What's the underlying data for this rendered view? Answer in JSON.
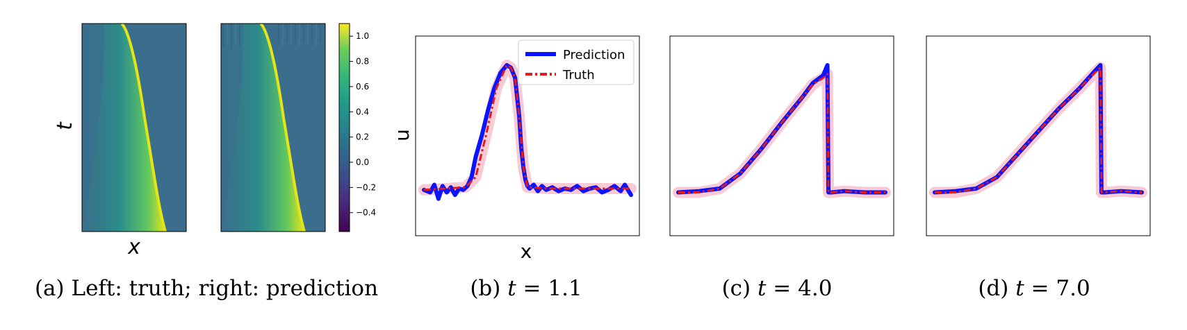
{
  "colors": {
    "truth": "#e41a1c",
    "prediction": "#0a14ff",
    "band": "#f5b8c4",
    "viridis_low": "#440154",
    "viridis_bg": "#3b6d8c",
    "viridis_high": "#fde725"
  },
  "captions": {
    "a": "(a) Left: truth; right: prediction",
    "b_prefix": "(b) ",
    "b_var": "t",
    "b_eq": " = 1.1",
    "c_prefix": "(c) ",
    "c_var": "t",
    "c_eq": " = 4.0",
    "d_prefix": "(d) ",
    "d_var": "t",
    "d_eq": " = 7.0"
  },
  "chart_data": [
    {
      "type": "heatmap",
      "panel": "truth",
      "xlabel": "x",
      "ylabel": "t",
      "colormap": "viridis",
      "colorbar": {
        "ticks": [
          1.0,
          0.8,
          0.6,
          0.4,
          0.2,
          0.0,
          -0.2,
          -0.4
        ],
        "tick_labels": [
          "1.0",
          "0.8",
          "0.6",
          "0.4",
          "0.2",
          "0.0",
          "−0.2",
          "−0.4"
        ],
        "range": [
          -0.55,
          1.1
        ]
      }
    },
    {
      "type": "heatmap",
      "panel": "prediction",
      "colormap": "viridis"
    },
    {
      "type": "line",
      "xlabel": "x",
      "ylabel": "u",
      "legend": [
        "Prediction",
        "Truth"
      ],
      "legend_position": "top-right",
      "series": [
        {
          "name": "Prediction",
          "x": [
            0.0,
            0.03,
            0.05,
            0.07,
            0.09,
            0.11,
            0.13,
            0.15,
            0.17,
            0.19,
            0.21,
            0.23,
            0.25,
            0.28,
            0.31,
            0.34,
            0.37,
            0.4,
            0.42,
            0.44,
            0.46,
            0.47,
            0.48,
            0.49,
            0.5,
            0.51,
            0.53,
            0.55,
            0.57,
            0.59,
            0.62,
            0.65,
            0.68,
            0.71,
            0.74,
            0.77,
            0.8,
            0.83,
            0.86,
            0.89,
            0.92,
            0.95,
            0.97,
            1.0
          ],
          "y": [
            0.02,
            0.0,
            0.06,
            -0.05,
            0.05,
            0.0,
            0.04,
            -0.02,
            0.03,
            0.02,
            0.05,
            0.12,
            0.28,
            0.45,
            0.65,
            0.82,
            0.94,
            1.0,
            0.98,
            0.9,
            0.6,
            0.35,
            0.2,
            0.1,
            0.05,
            0.03,
            0.06,
            0.01,
            0.05,
            0.02,
            0.04,
            0.01,
            0.03,
            0.02,
            0.05,
            0.01,
            0.03,
            0.04,
            0.0,
            0.02,
            0.05,
            0.01,
            0.06,
            -0.02
          ]
        },
        {
          "name": "Truth",
          "x": [
            0.0,
            0.1,
            0.2,
            0.25,
            0.3,
            0.35,
            0.4,
            0.42,
            0.44,
            0.46,
            0.48,
            0.5,
            0.6,
            0.7,
            0.8,
            0.9,
            1.0
          ],
          "y": [
            0.02,
            0.03,
            0.04,
            0.12,
            0.45,
            0.82,
            1.0,
            0.98,
            0.9,
            0.6,
            0.2,
            0.04,
            0.03,
            0.03,
            0.03,
            0.03,
            0.03
          ]
        }
      ]
    },
    {
      "type": "line",
      "series": [
        {
          "name": "Prediction",
          "x": [
            0.0,
            0.1,
            0.2,
            0.3,
            0.4,
            0.5,
            0.6,
            0.65,
            0.7,
            0.72,
            0.725,
            0.74,
            0.8,
            0.9,
            1.0
          ],
          "y": [
            0.0,
            0.01,
            0.03,
            0.15,
            0.34,
            0.55,
            0.75,
            0.86,
            0.92,
            1.0,
            0.0,
            0.0,
            0.01,
            0.0,
            0.0
          ]
        },
        {
          "name": "Truth",
          "x": [
            0.0,
            0.1,
            0.2,
            0.3,
            0.4,
            0.5,
            0.6,
            0.65,
            0.7,
            0.72,
            0.725,
            0.74,
            0.8,
            0.9,
            1.0
          ],
          "y": [
            0.0,
            0.0,
            0.03,
            0.15,
            0.34,
            0.55,
            0.75,
            0.85,
            0.9,
            0.93,
            0.0,
            0.0,
            0.01,
            0.0,
            0.0
          ]
        }
      ]
    },
    {
      "type": "line",
      "series": [
        {
          "name": "Prediction",
          "x": [
            0.0,
            0.1,
            0.2,
            0.3,
            0.4,
            0.5,
            0.6,
            0.7,
            0.76,
            0.8,
            0.805,
            0.82,
            0.9,
            1.0
          ],
          "y": [
            0.0,
            0.01,
            0.03,
            0.12,
            0.3,
            0.48,
            0.66,
            0.82,
            0.93,
            1.0,
            0.0,
            0.0,
            0.01,
            0.0
          ]
        },
        {
          "name": "Truth",
          "x": [
            0.0,
            0.1,
            0.2,
            0.3,
            0.4,
            0.5,
            0.6,
            0.7,
            0.76,
            0.8,
            0.805,
            0.82,
            0.9,
            1.0
          ],
          "y": [
            0.0,
            0.0,
            0.03,
            0.12,
            0.3,
            0.48,
            0.66,
            0.82,
            0.92,
            0.98,
            0.0,
            0.0,
            0.01,
            0.0
          ]
        }
      ]
    }
  ]
}
